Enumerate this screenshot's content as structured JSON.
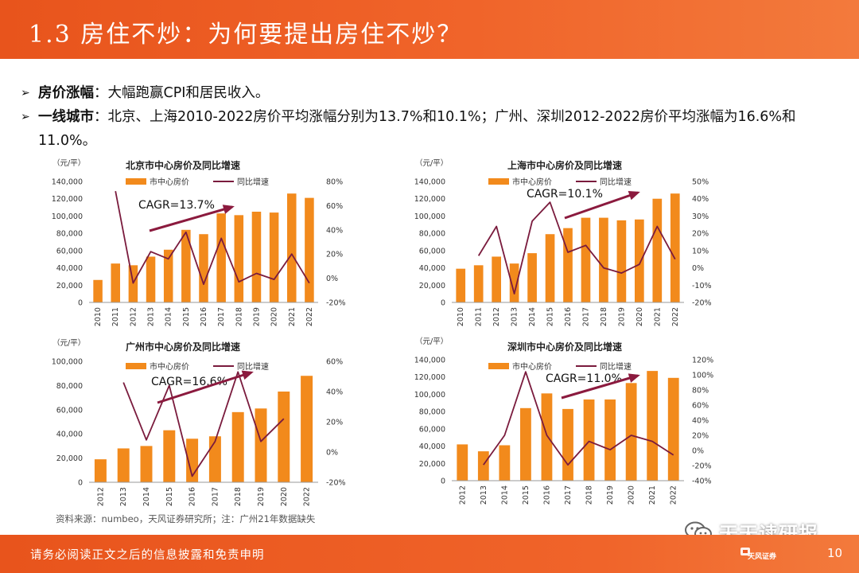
{
  "header": {
    "title": "1.3 房住不炒：为何要提出房住不炒？"
  },
  "bullets": [
    {
      "marker": "➢",
      "label": "房价涨幅",
      "text": "：大幅跑赢CPI和居民收入。"
    },
    {
      "marker": "➢",
      "label": "一线城市",
      "text": "：北京、上海2010-2022房价平均涨幅分别为13.7%和10.1%；广州、深圳2012-2022房价平均涨幅为16.6%和11.0%。"
    }
  ],
  "colors": {
    "bar": "#f28a1c",
    "line": "#7a1b3d",
    "arrow": "#8b1a3e",
    "header": "#ee5a24"
  },
  "legend": {
    "bar": "市中心房价",
    "line": "同比增速"
  },
  "unit_label": "（元/平）",
  "source": "资料来源：numbeo，天风证券研究所；注：广州21年数据缺失",
  "footer": {
    "disclaimer": "请务必阅读正文之后的信息披露和免责申明",
    "page": "10",
    "brand": "天风证券"
  },
  "watermark": "天天读研报",
  "chart_data": [
    {
      "type": "bar+line",
      "title": "北京市中心房价及同比增速",
      "categories": [
        "2010",
        "2011",
        "2012",
        "2013",
        "2014",
        "2015",
        "2016",
        "2017",
        "2018",
        "2019",
        "2020",
        "2021",
        "2022"
      ],
      "series": [
        {
          "name": "市中心房价",
          "type": "bar",
          "axis": "left",
          "values": [
            26000,
            45000,
            43000,
            53000,
            61000,
            84000,
            79000,
            103000,
            101000,
            105000,
            104000,
            126000,
            121000
          ]
        },
        {
          "name": "同比增速",
          "type": "line",
          "axis": "right",
          "values": [
            null,
            72,
            -4,
            22,
            16,
            38,
            -5,
            33,
            -3,
            4,
            -1,
            20,
            -4
          ]
        }
      ],
      "left_ticks": [
        "0",
        "20,000",
        "40,000",
        "60,000",
        "80,000",
        "100,000",
        "120,000",
        "140,000"
      ],
      "left_range": [
        0,
        140000
      ],
      "right_ticks": [
        "-20%",
        "0%",
        "20%",
        "40%",
        "60%",
        "80%"
      ],
      "right_range": [
        -20,
        80
      ],
      "annotation": "CAGR=13.7%"
    },
    {
      "type": "bar+line",
      "title": "上海市中心房价及同比增速",
      "categories": [
        "2010",
        "2011",
        "2012",
        "2013",
        "2014",
        "2015",
        "2016",
        "2017",
        "2018",
        "2019",
        "2020",
        "2021",
        "2022"
      ],
      "series": [
        {
          "name": "市中心房价",
          "type": "bar",
          "axis": "left",
          "values": [
            39000,
            43000,
            53000,
            45000,
            57000,
            79000,
            86000,
            98000,
            98000,
            95000,
            96000,
            120000,
            126000
          ]
        },
        {
          "name": "同比增速",
          "type": "line",
          "axis": "right",
          "values": [
            null,
            7,
            24,
            -15,
            27,
            38,
            9,
            13,
            0,
            -3,
            2,
            24,
            5
          ]
        }
      ],
      "left_ticks": [
        "0",
        "20,000",
        "40,000",
        "60,000",
        "80,000",
        "100,000",
        "120,000",
        "140,000"
      ],
      "left_range": [
        0,
        140000
      ],
      "right_ticks": [
        "-20%",
        "-10%",
        "0%",
        "10%",
        "20%",
        "30%",
        "40%",
        "50%"
      ],
      "right_range": [
        -20,
        50
      ],
      "annotation": "CAGR=10.1%"
    },
    {
      "type": "bar+line",
      "title": "广州市中心房价及同比增速",
      "categories": [
        "2012",
        "2013",
        "2014",
        "2015",
        "2016",
        "2017",
        "2018",
        "2019",
        "2020",
        "2022"
      ],
      "series": [
        {
          "name": "市中心房价",
          "type": "bar",
          "axis": "left",
          "values": [
            19000,
            28000,
            30000,
            43000,
            36000,
            38000,
            58000,
            61000,
            75000,
            88000
          ]
        },
        {
          "name": "同比增速",
          "type": "line",
          "axis": "right",
          "values": [
            null,
            46,
            8,
            44,
            -16,
            7,
            53,
            7,
            22,
            null
          ]
        }
      ],
      "left_ticks": [
        "0",
        "20,000",
        "40,000",
        "60,000",
        "80,000",
        "100,000"
      ],
      "left_range": [
        0,
        100000
      ],
      "right_ticks": [
        "-20%",
        "0%",
        "20%",
        "40%",
        "60%"
      ],
      "right_range": [
        -20,
        60
      ],
      "annotation": "CAGR=16.6%"
    },
    {
      "type": "bar+line",
      "title": "深圳市中心房价及同比增速",
      "categories": [
        "2012",
        "2013",
        "2014",
        "2015",
        "2016",
        "2017",
        "2018",
        "2019",
        "2020",
        "2021",
        "2022"
      ],
      "series": [
        {
          "name": "市中心房价",
          "type": "bar",
          "axis": "left",
          "values": [
            42000,
            34000,
            41000,
            84000,
            101000,
            83000,
            94000,
            94000,
            113000,
            127000,
            119000
          ]
        },
        {
          "name": "同比增速",
          "type": "line",
          "axis": "right",
          "values": [
            null,
            -19,
            20,
            104,
            20,
            -19,
            12,
            1,
            20,
            12,
            -6
          ]
        }
      ],
      "left_ticks": [
        "0",
        "20,000",
        "40,000",
        "60,000",
        "80,000",
        "100,000",
        "120,000",
        "140,000"
      ],
      "left_range": [
        0,
        140000
      ],
      "right_ticks": [
        "-40%",
        "-20%",
        "0%",
        "20%",
        "40%",
        "60%",
        "80%",
        "100%",
        "120%"
      ],
      "right_range": [
        -40,
        120
      ],
      "annotation": "CAGR=11.0%"
    }
  ]
}
